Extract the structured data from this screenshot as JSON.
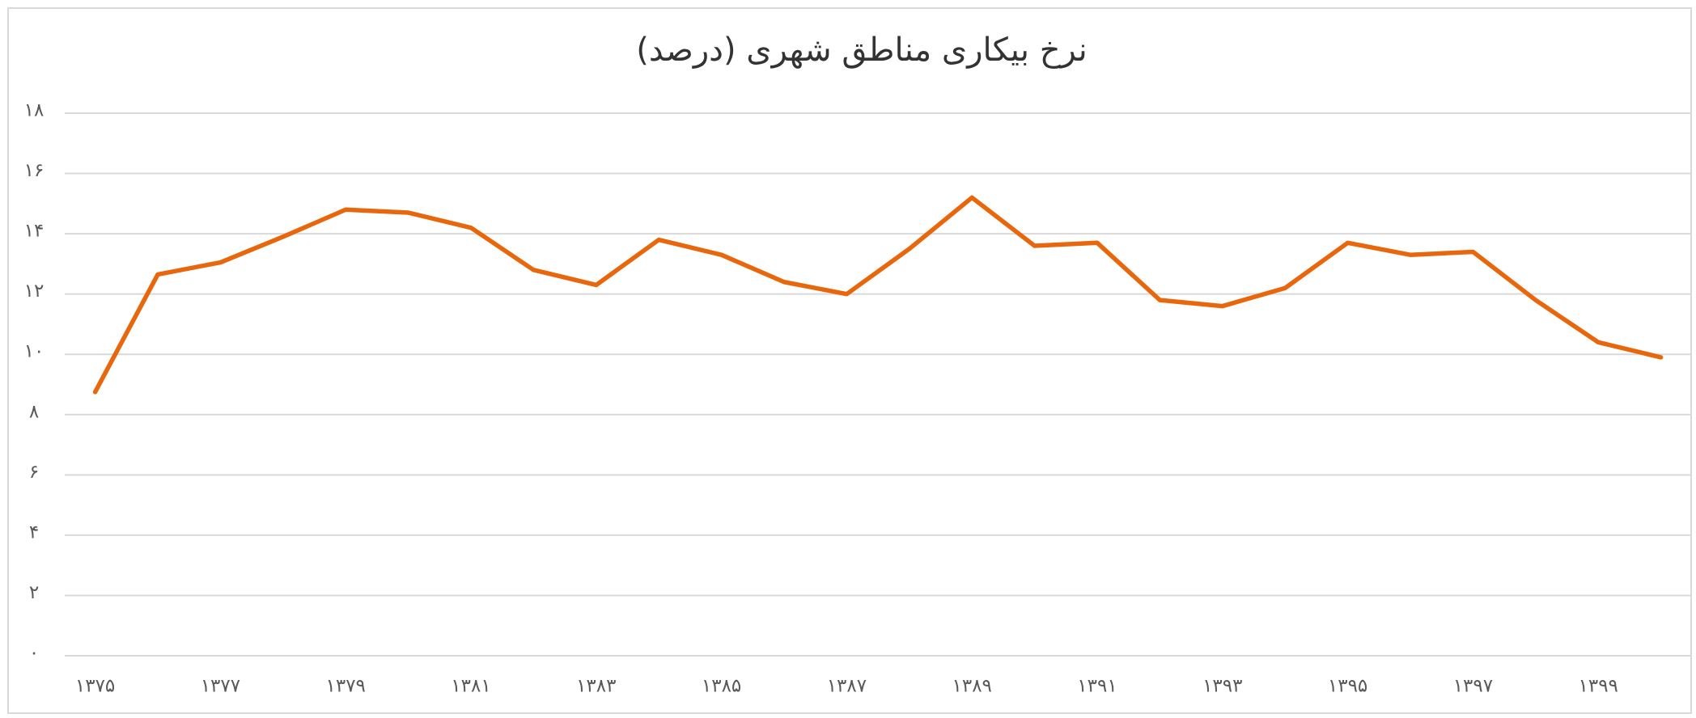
{
  "chart_data": {
    "type": "line",
    "title": "نرخ بیکاری مناطق شهری (درصد)",
    "categories": [
      "۱۳۷۵",
      null,
      "۱۳۷۷",
      null,
      "۱۳۷۹",
      null,
      "۱۳۸۱",
      null,
      "۱۳۸۳",
      null,
      "۱۳۸۵",
      null,
      "۱۳۸۷",
      null,
      "۱۳۸۹",
      null,
      "۱۳۹۱",
      null,
      "۱۳۹۳",
      null,
      "۱۳۹۵",
      null,
      "۱۳۹۷",
      null,
      "۱۳۹۹",
      null
    ],
    "series": [
      {
        "color": "#e8670c",
        "values": [
          8.75,
          12.65,
          13.05,
          13.9,
          14.8,
          14.7,
          14.2,
          12.8,
          12.3,
          13.8,
          13.3,
          12.4,
          12.0,
          13.5,
          15.2,
          13.6,
          13.7,
          11.8,
          11.6,
          12.2,
          13.7,
          13.3,
          13.4,
          11.8,
          10.4,
          9.9
        ]
      }
    ],
    "ylim": [
      0,
      18
    ],
    "yticks": [
      {
        "value": 0,
        "label": "۰"
      },
      {
        "value": 2,
        "label": "۲"
      },
      {
        "value": 4,
        "label": "۴"
      },
      {
        "value": 6,
        "label": "۶"
      },
      {
        "value": 8,
        "label": "۸"
      },
      {
        "value": 10,
        "label": "۱۰"
      },
      {
        "value": 12,
        "label": "۱۲"
      },
      {
        "value": 14,
        "label": "۱۴"
      },
      {
        "value": 16,
        "label": "۱۶"
      },
      {
        "value": 18,
        "label": "۱۸"
      }
    ],
    "grid": true
  }
}
